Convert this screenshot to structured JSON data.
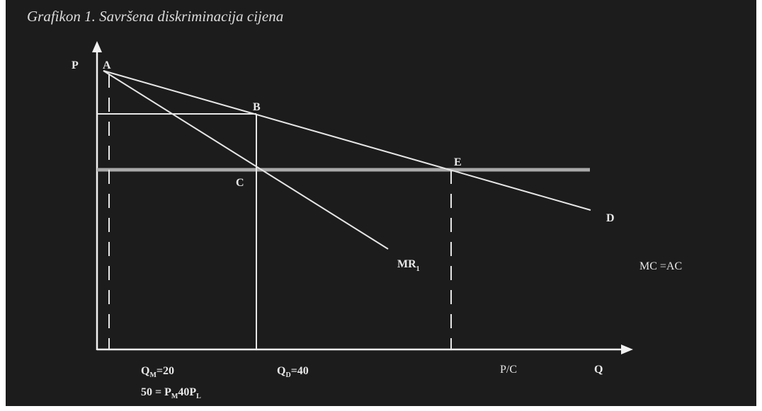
{
  "title": "Grafikon 1. Savršena diskriminacija cijena",
  "colors": {
    "background": "#1c1c1c",
    "lines": "#e6e6e6",
    "mc_line": "#a9a9a9",
    "text": "#e8e8e8"
  },
  "axes": {
    "y_label": "P",
    "x_label": "Q"
  },
  "points": {
    "a": "A",
    "b": "B",
    "c": "C",
    "e": "E"
  },
  "curves": {
    "demand": "D",
    "mr_main": "MR",
    "mr_sub": "1",
    "cost": "MC =AC"
  },
  "x_annotations": {
    "qm_main": "Q",
    "qm_sub": "M",
    "qm_value": "=20",
    "qd_main": "Q",
    "qd_sub": "D",
    "qd_value": "=40",
    "pc": "P/C"
  },
  "formula": {
    "lhs": "50 = P",
    "sub1": "M",
    "mid": "40P",
    "sub2": "L"
  }
}
